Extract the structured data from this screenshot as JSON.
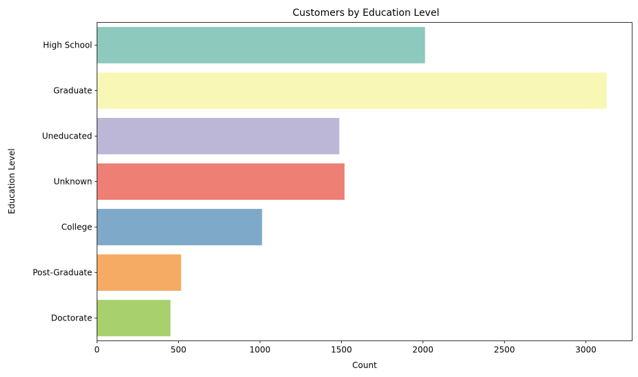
{
  "chart_data": {
    "type": "bar",
    "orientation": "horizontal",
    "title": "Customers by Education Level",
    "xlabel": "Count",
    "ylabel": "Education Level",
    "categories": [
      "High School",
      "Graduate",
      "Uneducated",
      "Unknown",
      "College",
      "Post-Graduate",
      "Doctorate"
    ],
    "values": [
      2013,
      3128,
      1487,
      1519,
      1013,
      516,
      451
    ],
    "colors": [
      "#8dc9bd",
      "#f8f7b6",
      "#bcb7d6",
      "#ee7f75",
      "#7ea9c9",
      "#f5ab64",
      "#a8d06c"
    ],
    "xlim": [
      0,
      3284
    ],
    "xticks": [
      0,
      500,
      1000,
      1500,
      2000,
      2500,
      3000
    ],
    "grid": false,
    "legend": "none"
  }
}
